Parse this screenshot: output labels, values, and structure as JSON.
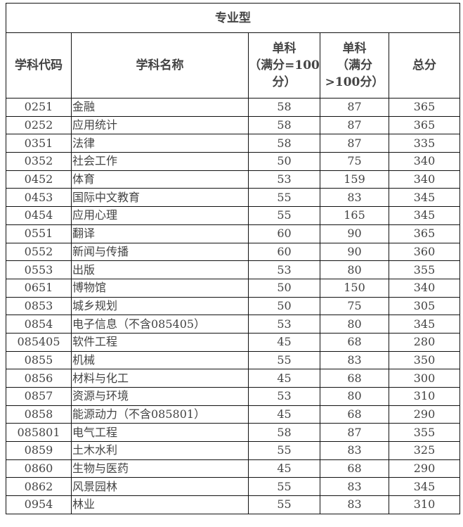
{
  "title": "专业型",
  "headers": {
    "code": "学科代码",
    "name": "学科名称",
    "single100_l1": "单科",
    "single100_l2": "（满分=100",
    "single100_l3": "分）",
    "singleOver_l1": "单科",
    "singleOver_l2": "（满分",
    "singleOver_l3": ">100分）",
    "total": "总分"
  },
  "rows": [
    [
      "0251",
      "金融",
      "58",
      "87",
      "365"
    ],
    [
      "0252",
      "应用统计",
      "58",
      "87",
      "365"
    ],
    [
      "0351",
      "法律",
      "58",
      "87",
      "335"
    ],
    [
      "0352",
      "社会工作",
      "50",
      "75",
      "340"
    ],
    [
      "0452",
      "体育",
      "53",
      "159",
      "340"
    ],
    [
      "0453",
      "国际中文教育",
      "55",
      "83",
      "345"
    ],
    [
      "0454",
      "应用心理",
      "55",
      "165",
      "345"
    ],
    [
      "0551",
      "翻译",
      "60",
      "90",
      "365"
    ],
    [
      "0552",
      "新闻与传播",
      "60",
      "90",
      "360"
    ],
    [
      "0553",
      "出版",
      "53",
      "80",
      "355"
    ],
    [
      "0651",
      "博物馆",
      "50",
      "150",
      "340"
    ],
    [
      "0853",
      "城乡规划",
      "50",
      "75",
      "305"
    ],
    [
      "0854",
      "电子信息（不含085405）",
      "53",
      "80",
      "345"
    ],
    [
      "085405",
      "软件工程",
      "45",
      "68",
      "280"
    ],
    [
      "0855",
      "机械",
      "55",
      "83",
      "350"
    ],
    [
      "0856",
      "材料与化工",
      "45",
      "68",
      "300"
    ],
    [
      "0857",
      "资源与环境",
      "53",
      "80",
      "310"
    ],
    [
      "0858",
      "能源动力（不含085801）",
      "45",
      "68",
      "290"
    ],
    [
      "085801",
      "电气工程",
      "58",
      "87",
      "355"
    ],
    [
      "0859",
      "土木水利",
      "55",
      "83",
      "325"
    ],
    [
      "0860",
      "生物与医药",
      "45",
      "68",
      "290"
    ],
    [
      "0862",
      "风景园林",
      "55",
      "83",
      "345"
    ],
    [
      "0954",
      "林业",
      "55",
      "83",
      "310"
    ]
  ]
}
